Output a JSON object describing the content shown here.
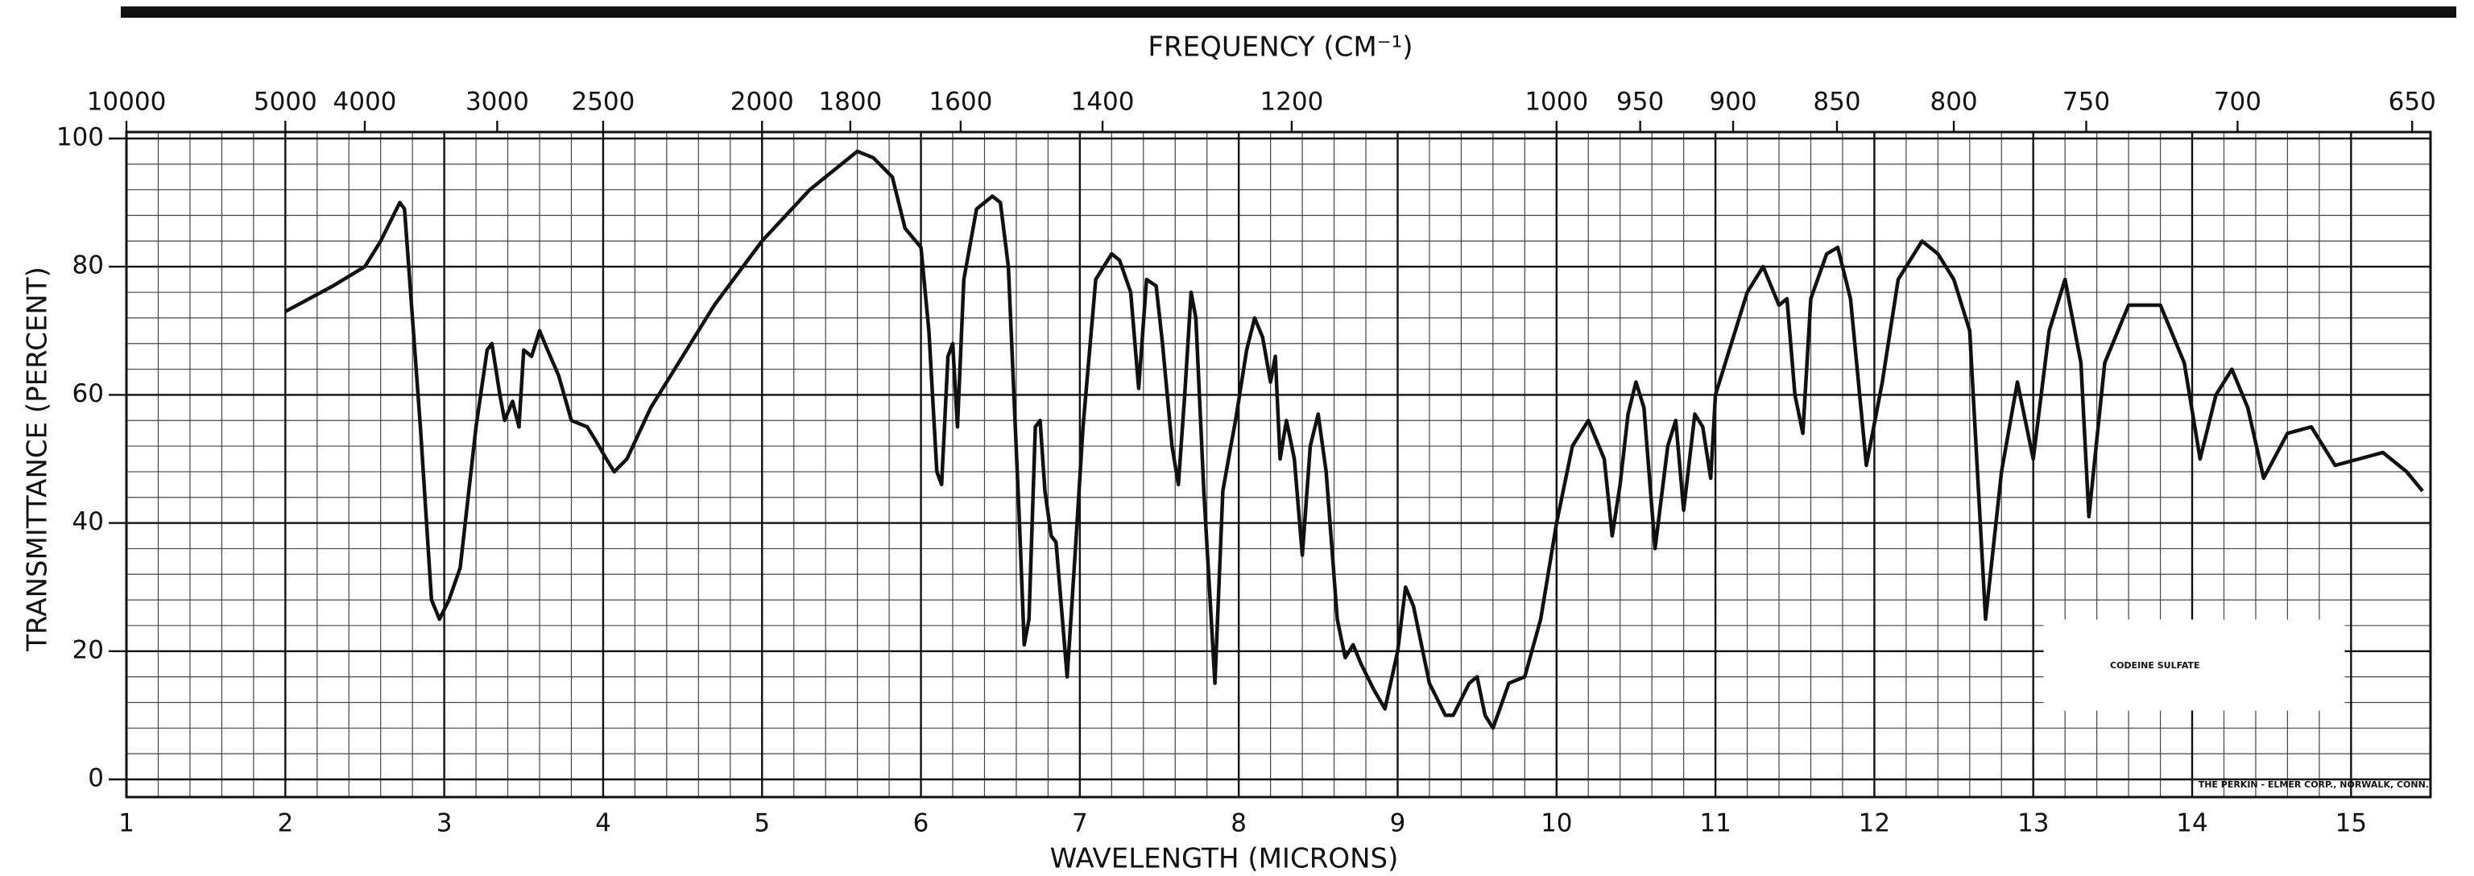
{
  "chart_data": {
    "type": "line",
    "title": "FREQUENCY (CM⁻¹)",
    "xlabel": "WAVELENGTH (MICRONS)",
    "ylabel": "TRANSMITTANCE (PERCENT)",
    "annotations": [
      "CODEINE SULFATE",
      "THE PERKIN - ELMER CORP., NORWALK, CONN."
    ],
    "color": "#111111",
    "grid": true,
    "xlim": [
      1,
      15.5
    ],
    "xticks": [
      1,
      2,
      3,
      4,
      5,
      6,
      7,
      8,
      9,
      10,
      11,
      12,
      13,
      14,
      15
    ],
    "x2ticks": [
      10000,
      5000,
      4000,
      3000,
      2500,
      2000,
      1800,
      1600,
      1400,
      1200,
      1000,
      950,
      900,
      850,
      800,
      750,
      700,
      650
    ],
    "ylim": [
      0,
      100
    ],
    "yticks": [
      0,
      20,
      40,
      60,
      80,
      100
    ],
    "x": [
      2.0,
      2.3,
      2.5,
      2.6,
      2.72,
      2.75,
      2.85,
      2.92,
      2.97,
      3.03,
      3.1,
      3.2,
      3.27,
      3.3,
      3.35,
      3.38,
      3.43,
      3.47,
      3.5,
      3.55,
      3.6,
      3.65,
      3.72,
      3.8,
      3.9,
      3.95,
      4.02,
      4.07,
      4.15,
      4.3,
      4.5,
      4.7,
      5.0,
      5.3,
      5.55,
      5.6,
      5.7,
      5.82,
      5.9,
      6.0,
      6.05,
      6.1,
      6.13,
      6.17,
      6.2,
      6.23,
      6.27,
      6.35,
      6.45,
      6.5,
      6.55,
      6.62,
      6.65,
      6.68,
      6.72,
      6.75,
      6.78,
      6.82,
      6.85,
      6.92,
      6.97,
      7.02,
      7.1,
      7.2,
      7.25,
      7.32,
      7.37,
      7.42,
      7.48,
      7.52,
      7.58,
      7.62,
      7.66,
      7.7,
      7.73,
      7.78,
      7.85,
      7.9,
      7.95,
      7.98,
      8.05,
      8.1,
      8.15,
      8.2,
      8.23,
      8.26,
      8.3,
      8.35,
      8.4,
      8.45,
      8.5,
      8.55,
      8.62,
      8.67,
      8.72,
      8.77,
      8.85,
      8.92,
      9.0,
      9.05,
      9.1,
      9.2,
      9.3,
      9.35,
      9.45,
      9.5,
      9.55,
      9.6,
      9.7,
      9.8,
      9.9,
      10.0,
      10.1,
      10.2,
      10.3,
      10.35,
      10.4,
      10.45,
      10.5,
      10.55,
      10.62,
      10.7,
      10.75,
      10.8,
      10.87,
      10.92,
      10.97,
      11.0,
      11.1,
      11.2,
      11.3,
      11.4,
      11.45,
      11.5,
      11.55,
      11.6,
      11.7,
      11.77,
      11.85,
      11.95,
      12.05,
      12.15,
      12.3,
      12.4,
      12.5,
      12.6,
      12.7,
      12.8,
      12.9,
      13.0,
      13.1,
      13.2,
      13.3,
      13.35,
      13.45,
      13.6,
      13.8,
      13.95,
      14.05,
      14.15,
      14.25,
      14.35,
      14.45,
      14.6,
      14.75,
      14.9,
      15.05,
      15.2,
      15.35,
      15.45
    ],
    "values": [
      73,
      77,
      80,
      84,
      90,
      89,
      55,
      28,
      25,
      28,
      33,
      55,
      67,
      68,
      60,
      56,
      59,
      55,
      67,
      66,
      70,
      67,
      63,
      56,
      55,
      53,
      50,
      48,
      50,
      58,
      66,
      74,
      84,
      92,
      97,
      98,
      97,
      94,
      86,
      83,
      70,
      48,
      46,
      66,
      68,
      55,
      78,
      89,
      91,
      90,
      80,
      40,
      21,
      25,
      55,
      56,
      45,
      38,
      37,
      16,
      35,
      55,
      78,
      82,
      81,
      76,
      61,
      78,
      77,
      68,
      52,
      46,
      60,
      76,
      72,
      45,
      15,
      45,
      52,
      56,
      67,
      72,
      69,
      62,
      66,
      50,
      56,
      50,
      35,
      52,
      57,
      48,
      25,
      19,
      21,
      18,
      14,
      11,
      20,
      30,
      27,
      15,
      10,
      10,
      15,
      16,
      10,
      8,
      15,
      16,
      25,
      40,
      52,
      56,
      50,
      38,
      46,
      57,
      62,
      58,
      36,
      52,
      56,
      42,
      57,
      55,
      47,
      60,
      68,
      76,
      80,
      74,
      75,
      60,
      54,
      75,
      82,
      83,
      75,
      49,
      62,
      78,
      84,
      82,
      78,
      70,
      25,
      48,
      62,
      50,
      70,
      78,
      65,
      41,
      65,
      74,
      74,
      65,
      50,
      60,
      64,
      58,
      47,
      54,
      55,
      49,
      50,
      51,
      48,
      45
    ]
  }
}
